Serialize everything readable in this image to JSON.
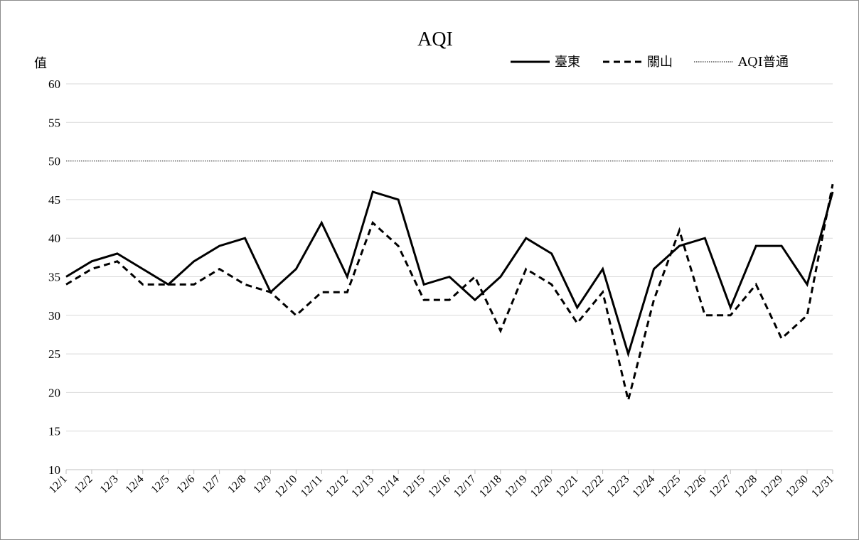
{
  "chart_data": {
    "type": "line",
    "title": "AQI",
    "ylabel": "值",
    "xlabel": "",
    "ylim": [
      10,
      60
    ],
    "yticks": [
      10,
      15,
      20,
      25,
      30,
      35,
      40,
      45,
      50,
      55,
      60
    ],
    "grid": true,
    "legend_position": "top-right",
    "categories": [
      "12/1",
      "12/2",
      "12/3",
      "12/4",
      "12/5",
      "12/6",
      "12/7",
      "12/8",
      "12/9",
      "12/10",
      "12/11",
      "12/12",
      "12/13",
      "12/14",
      "12/15",
      "12/16",
      "12/17",
      "12/18",
      "12/19",
      "12/20",
      "12/21",
      "12/22",
      "12/23",
      "12/24",
      "12/25",
      "12/26",
      "12/27",
      "12/28",
      "12/29",
      "12/30",
      "12/31"
    ],
    "series": [
      {
        "name": "臺東",
        "style": "solid",
        "color": "#000000",
        "values": [
          35,
          37,
          38,
          36,
          34,
          37,
          39,
          40,
          33,
          36,
          42,
          35,
          46,
          45,
          34,
          35,
          32,
          35,
          40,
          38,
          31,
          36,
          25,
          36,
          39,
          40,
          31,
          39,
          39,
          34,
          46
        ]
      },
      {
        "name": "關山",
        "style": "dashed",
        "color": "#000000",
        "values": [
          34,
          36,
          37,
          34,
          34,
          34,
          36,
          34,
          33,
          30,
          33,
          33,
          42,
          39,
          32,
          32,
          35,
          28,
          36,
          34,
          29,
          33,
          19,
          32,
          41,
          30,
          30,
          34,
          27,
          30,
          47
        ]
      }
    ],
    "reference_lines": [
      {
        "name": "AQI普通",
        "value": 50,
        "style": "dotted"
      }
    ]
  }
}
